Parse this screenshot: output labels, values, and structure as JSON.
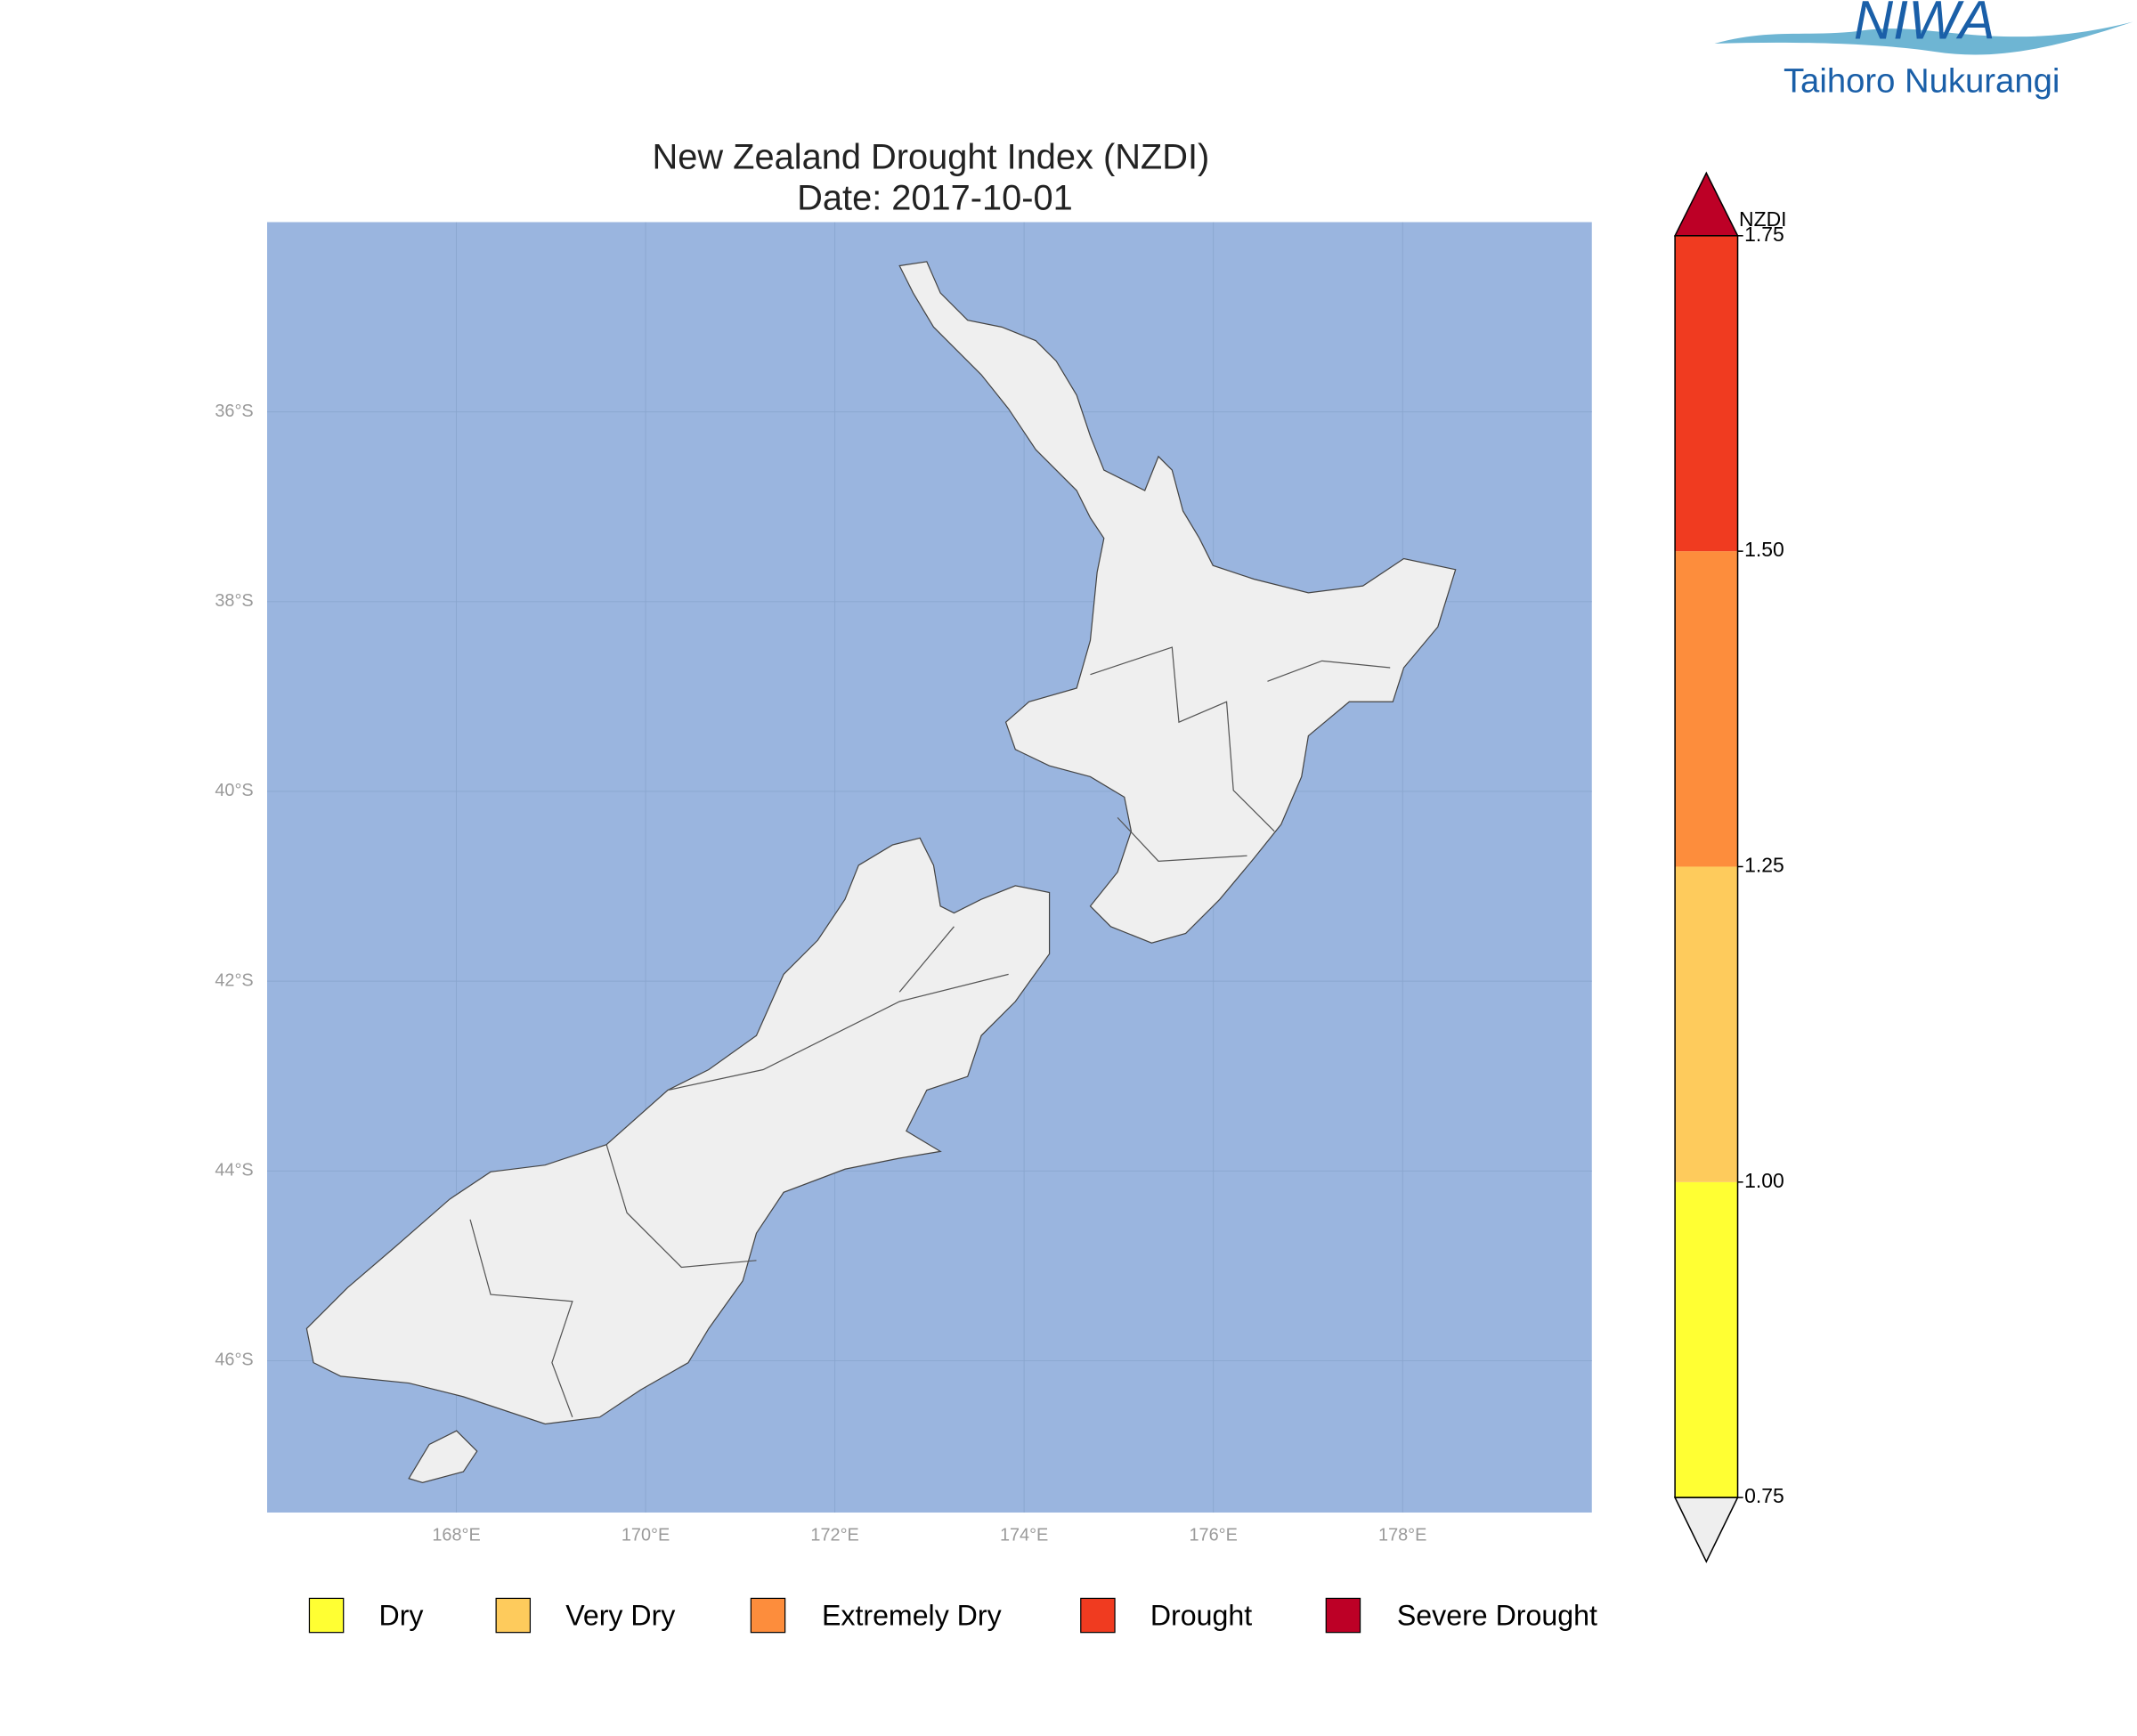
{
  "logo": {
    "name": "NIWA",
    "subtitle": "Taihoro Nukurangi"
  },
  "chart_data": {
    "type": "map",
    "title": "New Zealand Drought Index (NZDI)",
    "subtitle": "Date: 2017-10-01",
    "ocean_color": "#9ab5df",
    "land_color": "#efefef",
    "grid": true,
    "xlim": [
      166,
      180
    ],
    "ylim": [
      -47.6,
      -34
    ],
    "xticks": [
      {
        "value": 168,
        "label": "168°E"
      },
      {
        "value": 170,
        "label": "170°E"
      },
      {
        "value": 172,
        "label": "172°E"
      },
      {
        "value": 174,
        "label": "174°E"
      },
      {
        "value": 176,
        "label": "176°E"
      },
      {
        "value": 178,
        "label": "178°E"
      }
    ],
    "yticks": [
      {
        "value": -36,
        "label": "36°S"
      },
      {
        "value": -38,
        "label": "38°S"
      },
      {
        "value": -40,
        "label": "40°S"
      },
      {
        "value": -42,
        "label": "42°S"
      },
      {
        "value": -44,
        "label": "44°S"
      },
      {
        "value": -46,
        "label": "46°S"
      }
    ],
    "colorbar": {
      "label": "NZDI",
      "clim": [
        0.75,
        1.75
      ],
      "ticks": [
        0.75,
        {
          "value": 1,
          "label": "1.00"
        },
        1.25,
        {
          "value": 1.5,
          "label": "1.50"
        },
        1.75
      ],
      "colors": [
        "#ffff33",
        "#fecb5c",
        "#fd8d3c",
        "#f03b20"
      ],
      "over_color": "#bd0026",
      "under_color": "#eeeeee"
    },
    "legend": {
      "labels": [
        "Dry",
        "Very Dry",
        "Extremely Dry",
        "Drought",
        "Severe Drought"
      ],
      "colors": [
        "#ffff33",
        "#fecb5c",
        "#fd8d3c",
        "#f03b20",
        "#bd0026"
      ]
    }
  }
}
